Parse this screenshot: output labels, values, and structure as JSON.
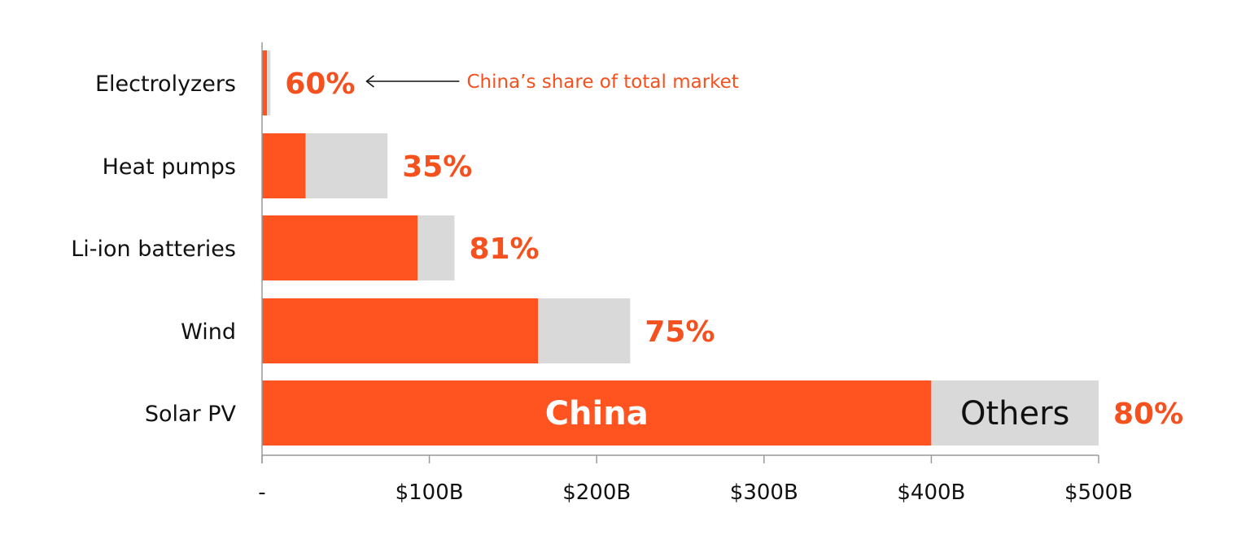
{
  "chart_data": {
    "type": "bar",
    "orientation": "horizontal",
    "stacked": true,
    "title": "",
    "xlabel": "",
    "ylabel": "",
    "xlim": [
      0,
      500
    ],
    "x_unit": "$B",
    "x_ticks": [
      0,
      100,
      200,
      300,
      400,
      500
    ],
    "x_tick_labels": [
      "-",
      "$100B",
      "$200B",
      "$300B",
      "$400B",
      "$500B"
    ],
    "grid": false,
    "categories": [
      "Electrolyzers",
      "Heat pumps",
      "Li-ion batteries",
      "Wind",
      "Solar PV"
    ],
    "series": [
      {
        "name": "China",
        "values": [
          3,
          26,
          93,
          165,
          400
        ],
        "color": "#FF5320"
      },
      {
        "name": "Others",
        "values": [
          2,
          49,
          22,
          55,
          100
        ],
        "color": "#D9D9D9"
      }
    ],
    "share_labels": [
      "60%",
      "35%",
      "81%",
      "75%",
      "80%"
    ],
    "share_color": "#F5511E",
    "annotation": {
      "text": "China’s share of total market",
      "target_category": "Electrolyzers"
    }
  }
}
